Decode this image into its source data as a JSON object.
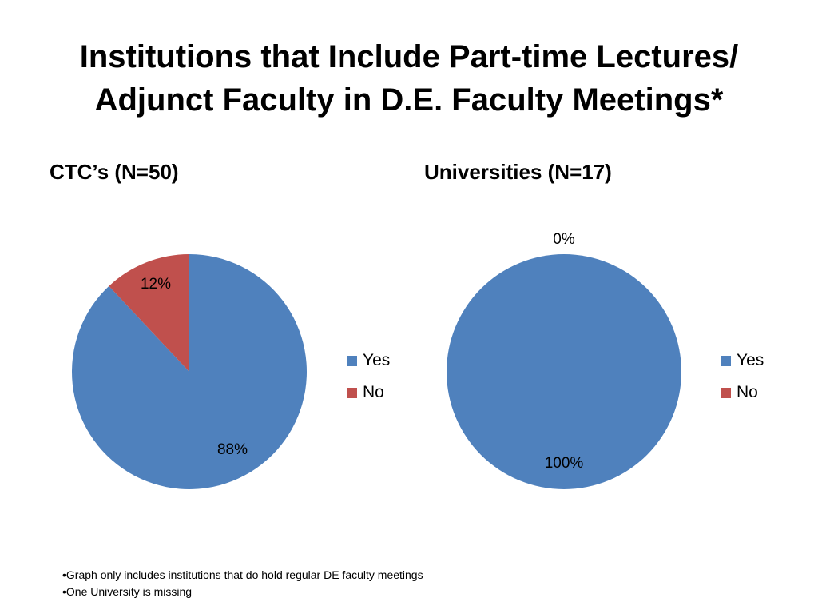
{
  "slide": {
    "title_lines": [
      "Institutions that Include Part-time Lectures/",
      "Adjunct Faculty in D.E. Faculty Meetings*"
    ],
    "footnotes": [
      "•Graph only includes institutions that do hold regular DE faculty meetings",
      "•One University is missing"
    ]
  },
  "colors": {
    "yes": "#4F81BD",
    "no": "#C0504D"
  },
  "chart_data": [
    {
      "type": "pie",
      "title": "CTC’s (N=50)",
      "categories": [
        "Yes",
        "No"
      ],
      "values": [
        88,
        12
      ],
      "data_labels": [
        "88%",
        "12%"
      ],
      "legend": [
        "Yes",
        "No"
      ],
      "legend_position": "right"
    },
    {
      "type": "pie",
      "title": "Universities (N=17)",
      "categories": [
        "Yes",
        "No"
      ],
      "values": [
        100,
        0
      ],
      "data_labels": [
        "100%",
        "0%"
      ],
      "legend": [
        "Yes",
        "No"
      ],
      "legend_position": "right"
    }
  ]
}
